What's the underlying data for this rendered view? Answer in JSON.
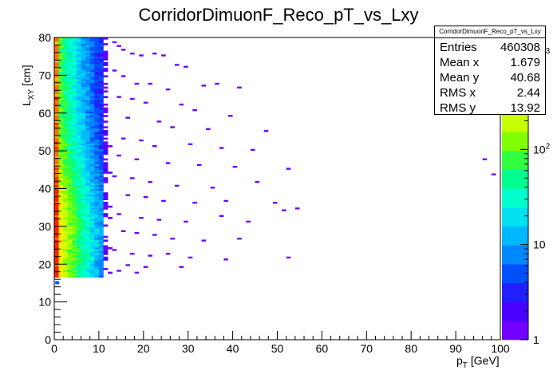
{
  "chart_data": {
    "type": "heatmap",
    "title": "CorridorDimuonF_Reco_pT_vs_Lxy",
    "xlabel": "p",
    "xlabel_sub": "T",
    "xlabel_unit": "[GeV]",
    "ylabel": "L",
    "ylabel_sub": "XY",
    "ylabel_unit": "[cm]",
    "xlim": [
      0,
      100
    ],
    "ylim": [
      0,
      80
    ],
    "x_ticks": [
      "0",
      "10",
      "20",
      "30",
      "40",
      "50",
      "60",
      "70",
      "80",
      "90",
      "100"
    ],
    "y_ticks": [
      "0",
      "10",
      "20",
      "30",
      "40",
      "50",
      "60",
      "70",
      "80"
    ],
    "z_scale": "log",
    "z_ticks": [
      {
        "value": 1,
        "label": "1"
      },
      {
        "value": 10,
        "label": "10"
      },
      {
        "value": 100,
        "label": "10",
        "sup": "2"
      },
      {
        "value": 1000,
        "label": "10",
        "sup": "3"
      }
    ],
    "zlim": [
      1,
      1500
    ],
    "x_bin_width": 1,
    "y_bin_width": 0.5,
    "palette": [
      "#7000ff",
      "#4800ff",
      "#2020ff",
      "#0050ff",
      "#0088ff",
      "#00b8ff",
      "#00e0f0",
      "#00ffcc",
      "#00ff90",
      "#30ff40",
      "#80ff00",
      "#c8ff00",
      "#ffee00",
      "#ffbb00",
      "#ff7000",
      "#ff2000"
    ],
    "grid": false,
    "stats": {
      "name": "CorridorDimuonF_Reco_pT_vs_Lxy",
      "rows": [
        {
          "label": "Entries",
          "value": "460308"
        },
        {
          "label": "Mean x",
          "value": "1.679"
        },
        {
          "label": "Mean y",
          "value": "40.68"
        },
        {
          "label": "RMS x",
          "value": "2.44"
        },
        {
          "label": "RMS y",
          "value": "13.92"
        }
      ]
    },
    "outlier_points": [
      [
        13.5,
        78.5
      ],
      [
        14.5,
        77.5
      ],
      [
        15.5,
        76.5
      ],
      [
        17.5,
        75.5
      ],
      [
        19.5,
        75.0
      ],
      [
        22.5,
        75.5
      ],
      [
        24.5,
        75.0
      ],
      [
        27.5,
        72.5
      ],
      [
        29.5,
        72.0
      ],
      [
        13.5,
        71.0
      ],
      [
        15.5,
        69.5
      ],
      [
        18.5,
        67.5
      ],
      [
        21.5,
        67.5
      ],
      [
        25.5,
        66.0
      ],
      [
        33.5,
        67.0
      ],
      [
        36.5,
        67.5
      ],
      [
        41.5,
        66.5
      ],
      [
        14.5,
        64.0
      ],
      [
        17.5,
        63.5
      ],
      [
        20.5,
        62.5
      ],
      [
        28.5,
        62.0
      ],
      [
        31.5,
        60.5
      ],
      [
        39.5,
        59.0
      ],
      [
        16.5,
        58.5
      ],
      [
        23.5,
        57.5
      ],
      [
        26.5,
        56.0
      ],
      [
        34.5,
        55.5
      ],
      [
        47.5,
        55.0
      ],
      [
        15.5,
        53.0
      ],
      [
        19.5,
        52.5
      ],
      [
        22.5,
        51.0
      ],
      [
        30.5,
        51.5
      ],
      [
        37.5,
        50.5
      ],
      [
        44.5,
        50.0
      ],
      [
        14.5,
        48.5
      ],
      [
        18.5,
        47.5
      ],
      [
        25.5,
        46.5
      ],
      [
        32.5,
        46.0
      ],
      [
        40.5,
        45.5
      ],
      [
        52.5,
        45.0
      ],
      [
        96.5,
        47.5
      ],
      [
        98.5,
        43.5
      ],
      [
        13.5,
        43.0
      ],
      [
        17.5,
        42.5
      ],
      [
        21.5,
        41.5
      ],
      [
        27.5,
        40.5
      ],
      [
        35.5,
        40.0
      ],
      [
        45.5,
        41.5
      ],
      [
        16.5,
        38.0
      ],
      [
        20.5,
        37.5
      ],
      [
        24.5,
        36.5
      ],
      [
        31.5,
        36.0
      ],
      [
        38.5,
        36.5
      ],
      [
        49.5,
        36.0
      ],
      [
        51.5,
        34.0
      ],
      [
        54.5,
        34.5
      ],
      [
        14.5,
        33.0
      ],
      [
        19.5,
        32.0
      ],
      [
        23.5,
        31.5
      ],
      [
        29.5,
        31.0
      ],
      [
        37.5,
        32.5
      ],
      [
        43.5,
        31.0
      ],
      [
        15.5,
        28.5
      ],
      [
        18.5,
        28.0
      ],
      [
        22.5,
        27.5
      ],
      [
        26.5,
        26.5
      ],
      [
        33.5,
        26.0
      ],
      [
        41.5,
        26.5
      ],
      [
        13.5,
        23.5
      ],
      [
        17.5,
        22.5
      ],
      [
        21.5,
        22.0
      ],
      [
        25.5,
        22.5
      ],
      [
        30.5,
        21.5
      ],
      [
        38.5,
        21.0
      ],
      [
        52.5,
        21.5
      ],
      [
        16.5,
        19.5
      ],
      [
        20.5,
        19.0
      ],
      [
        28.5,
        19.0
      ],
      [
        14.5,
        18.0
      ],
      [
        18.5,
        17.5
      ]
    ]
  }
}
